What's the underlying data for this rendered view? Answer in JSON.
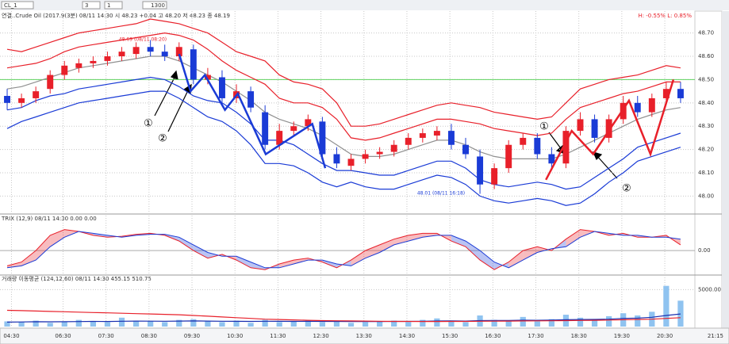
{
  "toolbar": {
    "symbol": "CL_1",
    "interval": "3",
    "count": "1",
    "bars": "1300"
  },
  "clock": "21:15",
  "chart_data": [
    {
      "type": "candlestick",
      "title": "연결..Crude Oil (2017.9(3분) 08/11 14:30 시 48.23 +0.04 고 48.20 저 48.23 종 48.19",
      "info": "H: -0.55%  L: 0.85%",
      "xlim": [
        -0.5,
        48
      ],
      "xticks": [
        {
          "value": 0.3,
          "label": "04:30"
        },
        {
          "value": 3.9,
          "label": "06:30"
        },
        {
          "value": 6.9,
          "label": "07:30"
        },
        {
          "value": 9.9,
          "label": "08:30"
        },
        {
          "value": 12.9,
          "label": "09:30"
        },
        {
          "value": 15.9,
          "label": "10:30"
        },
        {
          "value": 18.9,
          "label": "11:30"
        },
        {
          "value": 21.9,
          "label": "12:30"
        },
        {
          "value": 24.9,
          "label": "13:30"
        },
        {
          "value": 27.9,
          "label": "14:30"
        },
        {
          "value": 30.9,
          "label": "15:30"
        },
        {
          "value": 33.9,
          "label": "16:30"
        },
        {
          "value": 36.9,
          "label": "17:30"
        },
        {
          "value": 39.9,
          "label": "18:30"
        },
        {
          "value": 42.9,
          "label": "19:30"
        },
        {
          "value": 45.9,
          "label": "20:30"
        }
      ],
      "ylim": [
        47.93,
        48.76
      ],
      "yticks": [
        {
          "value": 48.0,
          "label": "48.00"
        },
        {
          "value": 48.1,
          "label": "48.10"
        },
        {
          "value": 48.2,
          "label": "48.20"
        },
        {
          "value": 48.3,
          "label": "48.30"
        },
        {
          "value": 48.4,
          "label": "48.40"
        },
        {
          "value": 48.5,
          "label": "48.50"
        },
        {
          "value": 48.6,
          "label": "48.60"
        },
        {
          "value": 48.7,
          "label": "48.70"
        }
      ],
      "grid": true,
      "up_color": "#e8202a",
      "down_color": "#1a3bd6",
      "open": [
        48.43,
        48.4,
        48.42,
        48.46,
        48.52,
        48.55,
        48.57,
        48.58,
        48.6,
        48.61,
        48.64,
        48.62,
        48.6,
        48.63,
        48.5,
        48.51,
        48.42,
        48.45,
        48.36,
        48.22,
        48.28,
        48.3,
        48.32,
        48.18,
        48.13,
        48.16,
        48.18,
        48.19,
        48.22,
        48.25,
        48.26,
        48.28,
        48.22,
        48.17,
        48.05,
        48.12,
        48.22,
        48.25,
        48.18,
        48.14,
        48.28,
        48.33,
        48.25,
        48.33,
        48.4,
        48.36,
        48.42,
        48.46
      ],
      "high": [
        48.46,
        48.44,
        48.47,
        48.54,
        48.58,
        48.59,
        48.6,
        48.62,
        48.64,
        48.66,
        48.67,
        48.65,
        48.66,
        48.65,
        48.55,
        48.54,
        48.48,
        48.47,
        48.39,
        48.31,
        48.32,
        48.35,
        48.34,
        48.21,
        48.18,
        48.2,
        48.21,
        48.24,
        48.27,
        48.29,
        48.3,
        48.31,
        48.25,
        48.2,
        48.14,
        48.24,
        48.27,
        48.27,
        48.21,
        48.3,
        48.36,
        48.35,
        48.35,
        48.43,
        48.43,
        48.44,
        48.49,
        48.49
      ],
      "low": [
        48.37,
        48.38,
        48.4,
        48.44,
        48.5,
        48.53,
        48.55,
        48.56,
        48.58,
        48.59,
        48.6,
        48.58,
        48.58,
        48.48,
        48.48,
        48.4,
        48.4,
        48.36,
        48.2,
        48.2,
        48.26,
        48.28,
        48.16,
        48.12,
        48.11,
        48.14,
        48.16,
        48.17,
        48.2,
        48.23,
        48.24,
        48.2,
        48.16,
        48.01,
        48.03,
        48.1,
        48.2,
        48.16,
        48.12,
        48.12,
        48.26,
        48.23,
        48.23,
        48.31,
        48.34,
        48.34,
        48.4,
        48.4
      ],
      "close": [
        48.4,
        48.42,
        48.45,
        48.52,
        48.56,
        48.57,
        48.58,
        48.6,
        48.62,
        48.64,
        48.62,
        48.6,
        48.64,
        48.5,
        48.52,
        48.42,
        48.45,
        48.38,
        48.22,
        48.28,
        48.3,
        48.33,
        48.18,
        48.14,
        48.16,
        48.18,
        48.19,
        48.22,
        48.25,
        48.27,
        48.28,
        48.22,
        48.18,
        48.05,
        48.12,
        48.22,
        48.25,
        48.18,
        48.14,
        48.28,
        48.33,
        48.25,
        48.33,
        48.4,
        48.36,
        48.42,
        48.46,
        48.42
      ],
      "bands": [
        {
          "color": "#e8202a",
          "values": [
            48.63,
            48.62,
            48.64,
            48.66,
            48.68,
            48.7,
            48.71,
            48.72,
            48.73,
            48.74,
            48.76,
            48.75,
            48.74,
            48.72,
            48.7,
            48.66,
            48.62,
            48.6,
            48.58,
            48.52,
            48.49,
            48.48,
            48.46,
            48.4,
            48.3,
            48.3,
            48.31,
            48.33,
            48.35,
            48.37,
            48.39,
            48.4,
            48.39,
            48.38,
            48.36,
            48.35,
            48.34,
            48.33,
            48.34,
            48.4,
            48.46,
            48.48,
            48.5,
            48.51,
            48.52,
            48.54,
            48.56,
            48.55
          ]
        },
        {
          "color": "#e8202a",
          "values": [
            48.55,
            48.56,
            48.57,
            48.59,
            48.62,
            48.64,
            48.65,
            48.66,
            48.67,
            48.68,
            48.69,
            48.7,
            48.69,
            48.67,
            48.63,
            48.58,
            48.54,
            48.51,
            48.48,
            48.42,
            48.4,
            48.4,
            48.38,
            48.33,
            48.25,
            48.24,
            48.25,
            48.27,
            48.29,
            48.31,
            48.33,
            48.33,
            48.32,
            48.31,
            48.29,
            48.28,
            48.27,
            48.26,
            48.27,
            48.33,
            48.38,
            48.4,
            48.42,
            48.44,
            48.45,
            48.47,
            48.49,
            48.49
          ]
        },
        {
          "color": "#909090",
          "values": [
            48.46,
            48.47,
            48.49,
            48.51,
            48.53,
            48.55,
            48.56,
            48.57,
            48.58,
            48.59,
            48.6,
            48.6,
            48.58,
            48.55,
            48.52,
            48.49,
            48.45,
            48.41,
            48.36,
            48.33,
            48.31,
            48.29,
            48.26,
            48.22,
            48.18,
            48.17,
            48.17,
            48.18,
            48.2,
            48.22,
            48.24,
            48.24,
            48.22,
            48.19,
            48.17,
            48.16,
            48.16,
            48.16,
            48.16,
            48.18,
            48.21,
            48.24,
            48.27,
            48.3,
            48.33,
            48.35,
            48.37,
            48.38
          ]
        },
        {
          "color": "#1a3bd6",
          "values": [
            48.37,
            48.38,
            48.41,
            48.43,
            48.44,
            48.46,
            48.47,
            48.48,
            48.49,
            48.5,
            48.51,
            48.5,
            48.47,
            48.43,
            48.41,
            48.4,
            48.36,
            48.31,
            48.24,
            48.24,
            48.22,
            48.18,
            48.14,
            48.11,
            48.11,
            48.1,
            48.09,
            48.09,
            48.11,
            48.13,
            48.15,
            48.15,
            48.12,
            48.07,
            48.05,
            48.04,
            48.05,
            48.06,
            48.05,
            48.03,
            48.04,
            48.08,
            48.12,
            48.16,
            48.21,
            48.23,
            48.25,
            48.27
          ]
        },
        {
          "color": "#1a3bd6",
          "values": [
            48.29,
            48.32,
            48.34,
            48.36,
            48.38,
            48.4,
            48.41,
            48.42,
            48.43,
            48.44,
            48.45,
            48.45,
            48.42,
            48.38,
            48.34,
            48.32,
            48.28,
            48.22,
            48.14,
            48.14,
            48.13,
            48.1,
            48.06,
            48.04,
            48.06,
            48.04,
            48.03,
            48.03,
            48.05,
            48.07,
            48.09,
            48.08,
            48.05,
            48.0,
            47.98,
            47.97,
            47.98,
            47.99,
            47.98,
            47.96,
            47.97,
            48.01,
            48.06,
            48.1,
            48.15,
            48.17,
            48.19,
            48.21
          ]
        }
      ],
      "hline": {
        "value": 48.5,
        "color": "#5fd35f"
      },
      "zigzags": [
        {
          "color": "#1a3bd6",
          "x": [
            12.0,
            12.8,
            13.8,
            15.2,
            16.1,
            18.05,
            21.3,
            22.2
          ],
          "y": [
            48.61,
            48.45,
            48.52,
            48.37,
            48.44,
            48.18,
            48.31,
            48.12
          ]
        },
        {
          "color": "#e8202a",
          "x": [
            37.6,
            39.4,
            40.9,
            43.4,
            44.9,
            46.5
          ],
          "y": [
            48.07,
            48.28,
            48.18,
            48.41,
            48.18,
            48.5
          ]
        }
      ],
      "annotations": [
        "①",
        "②",
        "①",
        "②",
        "48.69 (08/11 08:20)",
        "48.01 (08/11 16:18)"
      ]
    },
    {
      "type": "trix",
      "title": "TRIX (12,9) 08/11 14:30 0.00 0.00",
      "ylim": [
        -1.2,
        1.5
      ],
      "yticks": [
        {
          "value": 0,
          "label": "0.00"
        }
      ],
      "series": [
        {
          "color": "#e8202a",
          "values": [
            -0.8,
            -0.6,
            0.0,
            0.8,
            1.1,
            1.0,
            0.8,
            0.7,
            0.75,
            0.85,
            0.9,
            0.8,
            0.5,
            0.0,
            -0.4,
            -0.2,
            -0.5,
            -0.9,
            -1.0,
            -0.7,
            -0.5,
            -0.4,
            -0.6,
            -0.9,
            -0.5,
            0.0,
            0.3,
            0.6,
            0.8,
            0.9,
            0.9,
            0.5,
            0.2,
            -0.5,
            -1.0,
            -0.6,
            0.0,
            0.2,
            0.0,
            0.6,
            1.1,
            1.0,
            0.8,
            0.9,
            0.7,
            0.7,
            0.8,
            0.3
          ]
        },
        {
          "color": "#1a3bd6",
          "values": [
            -0.9,
            -0.8,
            -0.5,
            0.2,
            0.7,
            1.0,
            0.9,
            0.8,
            0.7,
            0.8,
            0.85,
            0.85,
            0.7,
            0.3,
            -0.1,
            -0.3,
            -0.3,
            -0.6,
            -0.9,
            -0.9,
            -0.7,
            -0.5,
            -0.5,
            -0.7,
            -0.8,
            -0.4,
            -0.1,
            0.3,
            0.5,
            0.7,
            0.8,
            0.8,
            0.5,
            0.0,
            -0.6,
            -0.9,
            -0.5,
            -0.1,
            0.1,
            0.2,
            0.7,
            1.0,
            0.9,
            0.8,
            0.8,
            0.7,
            0.7,
            0.6
          ]
        }
      ]
    },
    {
      "type": "volume",
      "title": "거래량 이동평균 (124,12,60) 08/11 14:30 455.15 510.75",
      "ylim": [
        0,
        6000
      ],
      "yticks": [
        {
          "value": 5000,
          "label": "5000.00"
        }
      ],
      "color": "#8fc3f0",
      "values": [
        700,
        600,
        800,
        500,
        600,
        900,
        700,
        600,
        1200,
        800,
        700,
        600,
        900,
        1000,
        700,
        600,
        800,
        500,
        900,
        600,
        700,
        800,
        600,
        700,
        500,
        600,
        700,
        800,
        600,
        900,
        1100,
        700,
        600,
        1500,
        900,
        800,
        1300,
        700,
        1000,
        1600,
        1200,
        900,
        1400,
        1800,
        1500,
        2000,
        5500,
        3500
      ],
      "series": [
        {
          "color": "#1a2fb0",
          "values": [
            600,
            620,
            650,
            640,
            650,
            680,
            700,
            690,
            720,
            740,
            730,
            720,
            740,
            760,
            740,
            720,
            710,
            700,
            720,
            710,
            700,
            710,
            700,
            700,
            680,
            670,
            680,
            700,
            700,
            720,
            750,
            760,
            740,
            800,
            820,
            830,
            860,
            850,
            870,
            920,
            950,
            960,
            1000,
            1100,
            1150,
            1250,
            1500,
            1700
          ]
        },
        {
          "color": "#e8202a",
          "values": [
            2200,
            2150,
            2100,
            2050,
            2000,
            1950,
            1900,
            1850,
            1800,
            1750,
            1700,
            1650,
            1600,
            1500,
            1400,
            1300,
            1200,
            1100,
            1000,
            950,
            900,
            850,
            800,
            780,
            760,
            740,
            720,
            700,
            700,
            690,
            690,
            700,
            700,
            720,
            730,
            740,
            760,
            770,
            780,
            800,
            830,
            850,
            880,
            920,
            960,
            1000,
            1100,
            1200
          ]
        }
      ]
    }
  ]
}
